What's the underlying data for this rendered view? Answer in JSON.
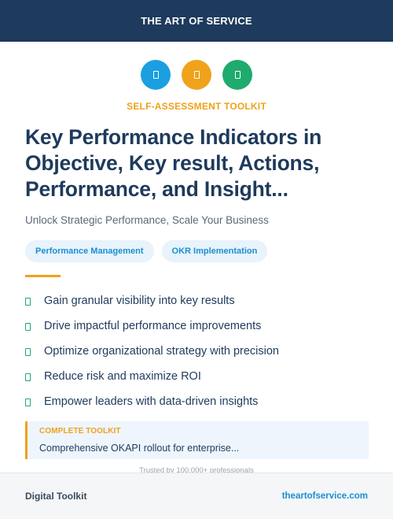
{
  "header": {
    "title": "THE ART OF SERVICE"
  },
  "icons": [
    {
      "name": "document-icon",
      "color": "#1a9fe0"
    },
    {
      "name": "document-icon",
      "color": "#f0a21b"
    },
    {
      "name": "document-icon",
      "color": "#1faa6e"
    }
  ],
  "eyebrow": "SELF-ASSESSMENT TOOLKIT",
  "title": "Key Performance Indicators in Objective, Key result, Actions, Performance, and Insight...",
  "subtitle": "Unlock Strategic Performance, Scale Your Business",
  "tags": [
    "Performance Management",
    "OKR Implementation"
  ],
  "benefits": [
    "Gain granular visibility into key results",
    "Drive impactful performance improvements",
    "Optimize organizational strategy with precision",
    "Reduce risk and maximize ROI",
    "Empower leaders with data-driven insights"
  ],
  "callout": {
    "label": "COMPLETE TOOLKIT",
    "text": "Comprehensive OKAPI rollout for enterprise..."
  },
  "trust": "Trusted by 100,000+ professionals",
  "footer": {
    "left": "Digital Toolkit",
    "right": "theartofservice.com"
  }
}
